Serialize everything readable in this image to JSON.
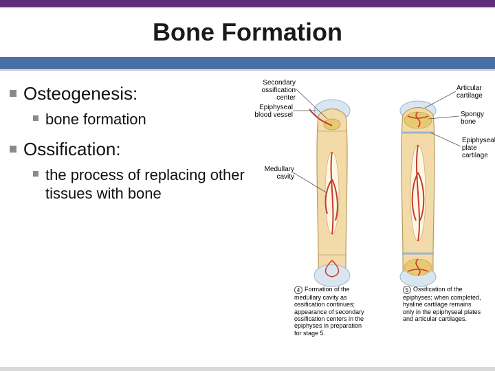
{
  "colors": {
    "purple": "#5e2d79",
    "gray_bar": "#bfbfbf",
    "blue_band": "#4a6fa5",
    "title_color": "#1a1a1a",
    "bullet_gray": "#8a8a8a",
    "text_color": "#111111",
    "bone_fill": "#f2dba8",
    "bone_stroke": "#b89a5a",
    "vessel": "#c83a2e",
    "spongy": "#e8c96f",
    "cartilage": "#d9e6f0",
    "line": "#555555"
  },
  "title": "Bone Formation",
  "bullets": [
    {
      "text": "Osteogenesis:",
      "subs": [
        {
          "text": "bone formation"
        }
      ]
    },
    {
      "text": "Ossification:",
      "subs": [
        {
          "text": "the process of replacing other tissues with bone"
        }
      ]
    }
  ],
  "labels": {
    "secondary": "Secondary\nossification\ncenter",
    "epiphyseal_vessel": "Epiphyseal\nblood vessel",
    "medullary": "Medullary\ncavity",
    "articular": "Articular\ncartilage",
    "spongy": "Spongy\nbone",
    "plate": "Epiphyseal\nplate\ncartilage"
  },
  "captions": {
    "step4_num": "4",
    "step4": "Formation of the medullary cavity as ossification continues; appearance of secondary ossification centers in the epiphyses in preparation for stage 5.",
    "step5_num": "5",
    "step5": "Ossification of the epiphyses; when completed, hyaline cartilage remains only in the epiphyseal plates and articular cartilages."
  }
}
